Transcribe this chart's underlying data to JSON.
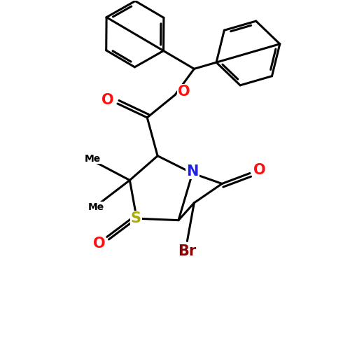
{
  "bg_color": "#ffffff",
  "bond_color": "#000000",
  "bond_width": 2.2,
  "atoms": {
    "N": {
      "color": "#2020ee",
      "fontsize": 15
    },
    "O_carbonyl": {
      "color": "#ff1010",
      "fontsize": 15
    },
    "O_ester": {
      "color": "#ff1010",
      "fontsize": 15
    },
    "O_sulfoxide": {
      "color": "#ff1010",
      "fontsize": 15
    },
    "S": {
      "color": "#aaaa00",
      "fontsize": 15
    },
    "Br": {
      "color": "#8b0000",
      "fontsize": 15
    }
  },
  "xlim": [
    0,
    10
  ],
  "ylim": [
    0,
    10
  ]
}
